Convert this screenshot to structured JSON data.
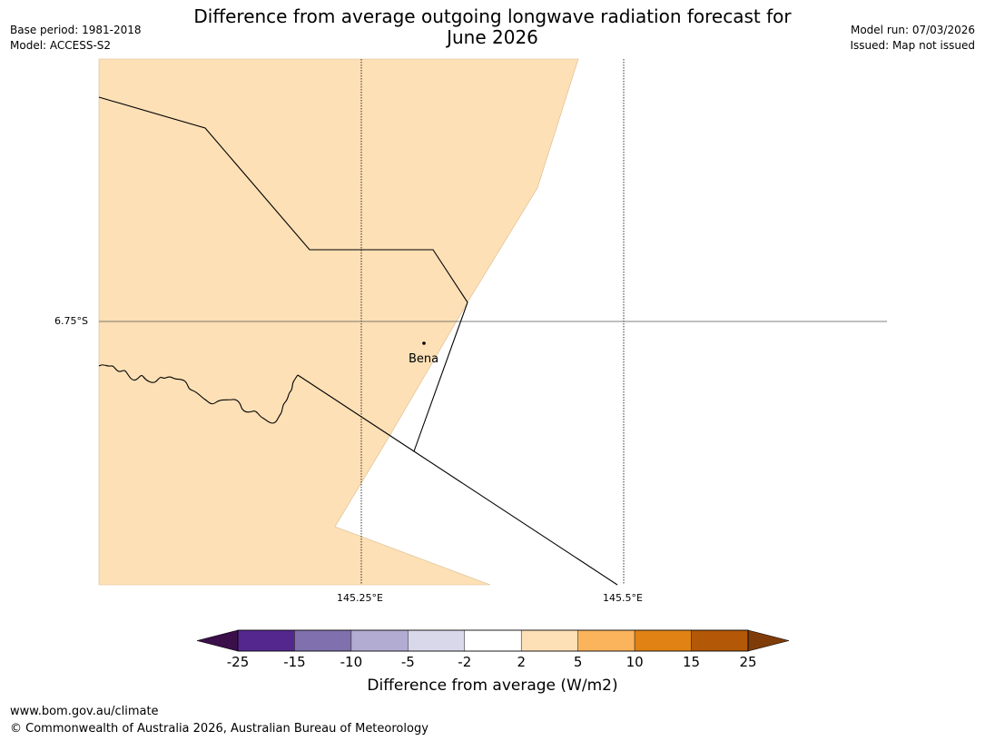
{
  "header": {
    "title_line1": "Difference from average outgoing longwave radiation forecast for",
    "title_line2": "June 2026",
    "base_period": "Base period: 1981-2018",
    "model": "Model: ACCESS-S2",
    "model_run": "Model run: 07/03/2026",
    "issued": "Issued: Map not issued"
  },
  "map": {
    "lat_label": "6.75°S",
    "lon_labels": [
      "145.25°E",
      "145.5°E"
    ],
    "place_label": "Bena",
    "fill_color": "#fde0b6",
    "background_color": "#ffffff"
  },
  "colorbar": {
    "title": "Difference from average (W/m2)",
    "ticks": [
      "-25",
      "-15",
      "-10",
      "-5",
      "-2",
      "2",
      "5",
      "10",
      "15",
      "25"
    ],
    "colors": [
      "#3b0f4a",
      "#54278f",
      "#8070ad",
      "#b2abd2",
      "#d8d8ea",
      "#ffffff",
      "#fde0b6",
      "#fbb45c",
      "#e08214",
      "#b35806",
      "#7f3b08"
    ]
  },
  "footer": {
    "url": "www.bom.gov.au/climate",
    "copyright": "© Commonwealth of Australia 2026, Australian Bureau of Meteorology"
  }
}
